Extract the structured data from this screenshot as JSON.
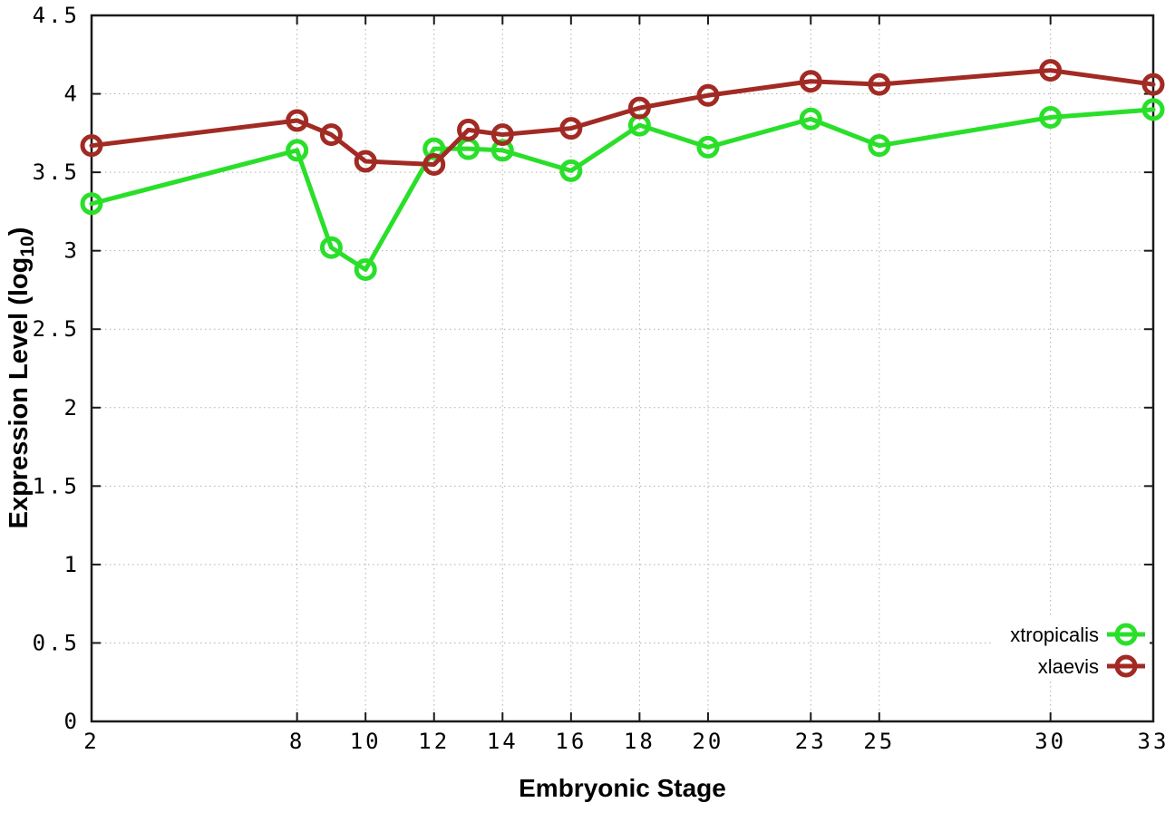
{
  "figure": {
    "background": "#ffffff",
    "xlabel": "Embryonic Stage",
    "ylabel_parts": {
      "pre": "Expression Level (log",
      "sub": "10",
      "post": ")"
    }
  },
  "chart_data": {
    "type": "line",
    "x": [
      2,
      8,
      9,
      10,
      12,
      13,
      14,
      16,
      18,
      20,
      23,
      25,
      30,
      33
    ],
    "series": [
      {
        "name": "xtropicalis",
        "color": "#2adf2a",
        "marker": "open-circle",
        "values": [
          3.3,
          3.64,
          3.02,
          2.88,
          3.65,
          3.65,
          3.64,
          3.51,
          3.8,
          3.66,
          3.84,
          3.67,
          3.85,
          3.9
        ]
      },
      {
        "name": "xlaevis",
        "color": "#a12b24",
        "marker": "open-circle",
        "values": [
          3.67,
          3.83,
          3.74,
          3.57,
          3.55,
          3.77,
          3.74,
          3.78,
          3.91,
          3.99,
          4.08,
          4.06,
          4.15,
          4.06
        ]
      }
    ],
    "title": "",
    "xlabel": "Embryonic Stage",
    "ylabel": "Expression Level (log10)",
    "xlim": [
      2,
      33
    ],
    "ylim": [
      0,
      4.5
    ],
    "xticks": {
      "values": [
        2,
        8,
        10,
        12,
        14,
        16,
        18,
        20,
        23,
        25,
        30,
        33
      ],
      "labels": [
        "2",
        "8",
        "10",
        "12",
        "14",
        "16",
        "18",
        "20",
        "23",
        "25",
        "30",
        "33"
      ]
    },
    "yticks": {
      "values": [
        0,
        0.5,
        1,
        1.5,
        2,
        2.5,
        3,
        3.5,
        4,
        4.5
      ],
      "labels": [
        "0",
        "0.5",
        "1",
        "1.5",
        "2",
        "2.5",
        "3",
        "3.5",
        "4",
        "4.5"
      ]
    },
    "grid": true,
    "legend_position": "bottom-right"
  },
  "colors": {
    "grid": "#b0b0b0",
    "axis": "#1a1a1a",
    "text": "#000000"
  }
}
